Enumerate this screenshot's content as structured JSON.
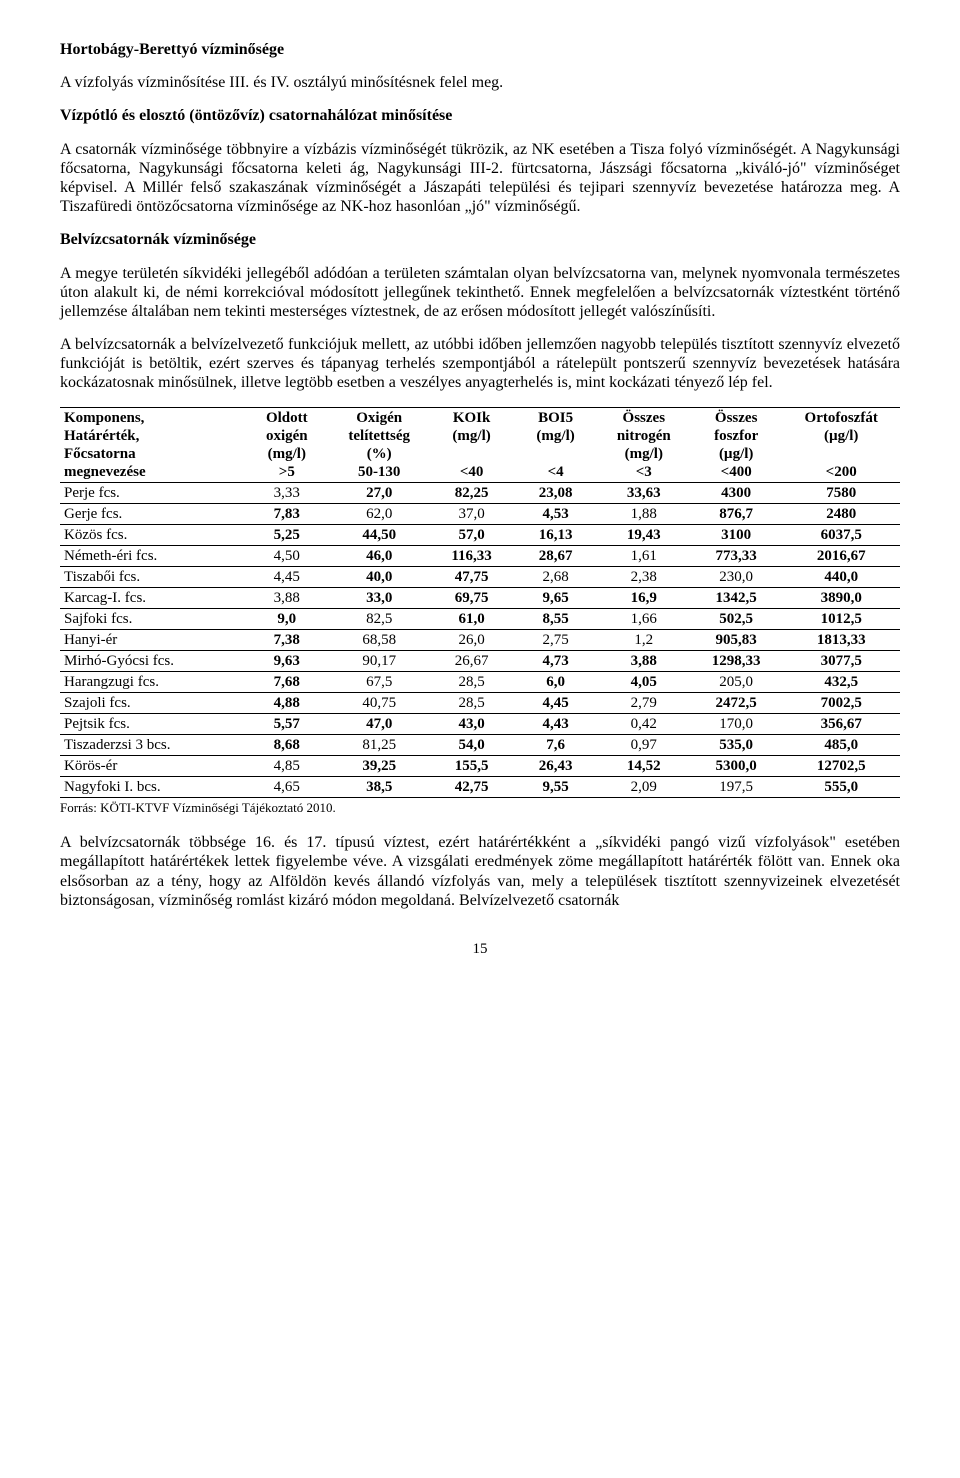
{
  "headings": {
    "h1": "Hortobágy-Berettyó vízminősége",
    "h3": "Belvízcsatornák vízminősége"
  },
  "paragraphs": {
    "p1": "A vízfolyás vízminősítése III. és IV. osztályú minősítésnek felel meg.",
    "p2": "Vízpótló és elosztó (öntözővíz) csatornahálózat minősítése",
    "p3": "A csatornák vízminősége többnyire a vízbázis vízminőségét tükrözik, az NK esetében a Tisza folyó vízminőségét. A Nagykunsági főcsatorna, Nagykunsági főcsatorna keleti ág, Nagykunsági III-2. fürtcsatorna, Jászsági főcsatorna „kiváló-jó\" vízminőséget képvisel. A Millér felső szakaszának vízminőségét a Jászapáti települési és tejipari szennyvíz bevezetése határozza meg. A Tiszafüredi öntözőcsatorna vízminősége az NK-hoz hasonlóan „jó\" vízminőségű.",
    "p4": "A megye területén síkvidéki jellegéből adódóan a területen számtalan olyan belvízcsatorna van, melynek nyomvonala természetes úton alakult ki, de némi korrekcióval módosított jellegűnek tekinthető. Ennek megfelelően a belvízcsatornák víztestként történő jellemzése általában nem tekinti mesterséges víztestnek, de az erősen módosított jellegét valószínűsíti.",
    "p5": "A belvízcsatornák a belvízelvezető funkciójuk mellett, az utóbbi időben jellemzően nagyobb település tisztított szennyvíz elvezető funkcióját is betöltik, ezért szerves és tápanyag terhelés szempontjából a rátelepült pontszerű szennyvíz bevezetések hatására kockázatosnak minősülnek, illetve legtöbb esetben a veszélyes anyagterhelés is, mint kockázati tényező lép fel.",
    "source": "Forrás: KÖTI-KTVF Vízminőségi Tájékoztató 2010.",
    "p6": "A belvízcsatornák többsége 16. és 17. típusú víztest, ezért határértékként a „síkvidéki pangó vizű vízfolyások\" esetében megállapított határértékek lettek figyelembe véve. A vizsgálati eredmények zöme megállapított határérték fölött van. Ennek oka elsősorban az a tény, hogy az Alföldön kevés állandó vízfolyás van, mely a települések tisztított szennyvizeinek elvezetését biztonságosan, vízminőség romlást kizáró módon megoldaná. Belvízelvezető csatornák"
  },
  "table": {
    "header_rows": [
      [
        "Komponens,",
        "Oldott",
        "Oxigén",
        "KOIk",
        "BOI5",
        "Összes",
        "Összes",
        "Ortofoszfát"
      ],
      [
        "Határérték,",
        "oxigén",
        "telítettség",
        "(mg/l)",
        "(mg/l)",
        "nitrogén",
        "foszfor",
        "(µg/l)"
      ],
      [
        "Főcsatorna",
        "(mg/l)",
        "(%)",
        "",
        "",
        "(mg/l)",
        "(µg/l)",
        ""
      ],
      [
        "megnevezése",
        ">5",
        "50-130",
        "<40",
        "<4",
        "<3",
        "<400",
        "<200"
      ]
    ],
    "rows": [
      {
        "c": [
          "Perje fcs.",
          "3,33",
          "27,0",
          "82,25",
          "23,08",
          "33,63",
          "4300",
          "7580"
        ],
        "b": [
          0,
          0,
          1,
          1,
          1,
          1,
          1,
          1
        ]
      },
      {
        "c": [
          "Gerje fcs.",
          "7,83",
          "62,0",
          "37,0",
          "4,53",
          "1,88",
          "876,7",
          "2480"
        ],
        "b": [
          0,
          1,
          0,
          0,
          1,
          0,
          1,
          1
        ]
      },
      {
        "c": [
          "Közös fcs.",
          "5,25",
          "44,50",
          "57,0",
          "16,13",
          "19,43",
          "3100",
          "6037,5"
        ],
        "b": [
          0,
          1,
          1,
          1,
          1,
          1,
          1,
          1
        ]
      },
      {
        "c": [
          "Németh-éri fcs.",
          "4,50",
          "46,0",
          "116,33",
          "28,67",
          "1,61",
          "773,33",
          "2016,67"
        ],
        "b": [
          0,
          0,
          1,
          1,
          1,
          0,
          1,
          1
        ]
      },
      {
        "c": [
          "Tiszabői fcs.",
          "4,45",
          "40,0",
          "47,75",
          "2,68",
          "2,38",
          "230,0",
          "440,0"
        ],
        "b": [
          0,
          0,
          1,
          1,
          0,
          0,
          0,
          1
        ]
      },
      {
        "c": [
          "Karcag-I. fcs.",
          "3,88",
          "33,0",
          "69,75",
          "9,65",
          "16,9",
          "1342,5",
          "3890,0"
        ],
        "b": [
          0,
          0,
          1,
          1,
          1,
          1,
          1,
          1
        ]
      },
      {
        "c": [
          "Sajfoki fcs.",
          "9,0",
          "82,5",
          "61,0",
          "8,55",
          "1,66",
          "502,5",
          "1012,5"
        ],
        "b": [
          0,
          1,
          0,
          1,
          1,
          0,
          1,
          1
        ]
      },
      {
        "c": [
          "Hanyi-ér",
          "7,38",
          "68,58",
          "26,0",
          "2,75",
          "1,2",
          "905,83",
          "1813,33"
        ],
        "b": [
          0,
          1,
          0,
          0,
          0,
          0,
          1,
          1
        ]
      },
      {
        "c": [
          "Mirhó-Gyócsi fcs.",
          "9,63",
          "90,17",
          "26,67",
          "4,73",
          "3,88",
          "1298,33",
          "3077,5"
        ],
        "b": [
          0,
          1,
          0,
          0,
          1,
          1,
          1,
          1
        ]
      },
      {
        "c": [
          "Harangzugi fcs.",
          "7,68",
          "67,5",
          "28,5",
          "6,0",
          "4,05",
          "205,0",
          "432,5"
        ],
        "b": [
          0,
          1,
          0,
          0,
          1,
          1,
          0,
          1
        ]
      },
      {
        "c": [
          "Szajoli fcs.",
          "4,88",
          "40,75",
          "28,5",
          "4,45",
          "2,79",
          "2472,5",
          "7002,5"
        ],
        "b": [
          0,
          1,
          0,
          0,
          1,
          0,
          1,
          1
        ]
      },
      {
        "c": [
          "Pejtsik fcs.",
          "5,57",
          "47,0",
          "43,0",
          "4,43",
          "0,42",
          "170,0",
          "356,67"
        ],
        "b": [
          0,
          1,
          1,
          1,
          1,
          0,
          0,
          1
        ]
      },
      {
        "c": [
          "Tiszaderzsi 3 bcs.",
          "8,68",
          "81,25",
          "54,0",
          "7,6",
          "0,97",
          "535,0",
          "485,0"
        ],
        "b": [
          0,
          1,
          0,
          1,
          1,
          0,
          1,
          1
        ]
      },
      {
        "c": [
          "Körös-ér",
          "4,85",
          "39,25",
          "155,5",
          "26,43",
          "14,52",
          "5300,0",
          "12702,5"
        ],
        "b": [
          0,
          0,
          1,
          1,
          1,
          1,
          1,
          1
        ]
      },
      {
        "c": [
          "Nagyfoki I. bcs.",
          "4,65",
          "38,5",
          "42,75",
          "9,55",
          "2,09",
          "197,5",
          "555,0"
        ],
        "b": [
          0,
          0,
          1,
          1,
          1,
          0,
          0,
          1
        ]
      }
    ],
    "col_widths_pct": [
      22,
      10,
      12,
      10,
      10,
      11,
      11,
      14
    ]
  },
  "pagenum": "15"
}
